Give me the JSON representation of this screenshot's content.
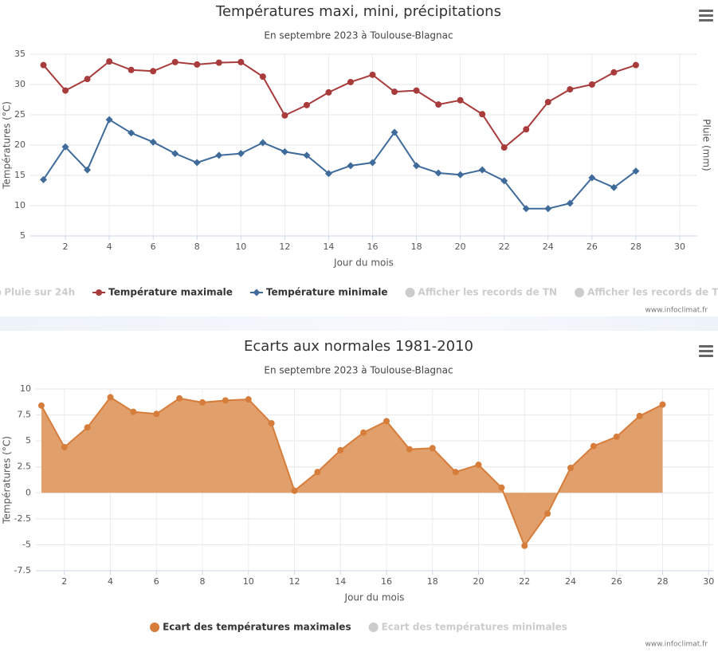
{
  "chart_data": [
    {
      "type": "line",
      "title": "Températures maxi, mini, précipitations",
      "subtitle": "En septembre 2023 à Toulouse-Blagnac",
      "xlabel": "Jour du mois",
      "ylabel": "Températures (°C)",
      "y2label": "Pluie (mm)",
      "x": [
        1,
        2,
        3,
        4,
        5,
        6,
        7,
        8,
        9,
        10,
        11,
        12,
        13,
        14,
        15,
        16,
        17,
        18,
        19,
        20,
        21,
        22,
        23,
        24,
        25,
        26,
        27,
        28
      ],
      "series": [
        {
          "name": "Température maximale",
          "color": "#a83b3b",
          "marker": "circle",
          "values": [
            33.2,
            29.0,
            30.9,
            33.8,
            32.4,
            32.2,
            33.7,
            33.3,
            33.6,
            33.7,
            31.3,
            24.9,
            26.6,
            28.7,
            30.4,
            31.6,
            28.8,
            29.0,
            26.7,
            27.4,
            25.1,
            19.6,
            22.6,
            27.1,
            29.2,
            30.0,
            32.0,
            33.2
          ]
        },
        {
          "name": "Température minimale",
          "color": "#3f6b9b",
          "marker": "diamond",
          "values": [
            14.3,
            19.7,
            15.9,
            24.2,
            22.0,
            20.5,
            18.6,
            17.1,
            18.3,
            18.6,
            20.4,
            18.9,
            18.3,
            15.3,
            16.6,
            17.1,
            22.1,
            16.6,
            15.4,
            15.1,
            15.9,
            14.1,
            9.5,
            9.5,
            10.4,
            14.6,
            13.0,
            15.7
          ]
        }
      ],
      "legend_hidden_before": [
        "Pluie sur 24h"
      ],
      "legend_hidden_after": [
        "Afficher les records de TN",
        "Afficher les records de TX"
      ],
      "xlim": [
        0.4,
        30.8
      ],
      "xticks": [
        2,
        4,
        6,
        8,
        10,
        12,
        14,
        16,
        18,
        20,
        22,
        24,
        26,
        28,
        30
      ],
      "ylim": [
        5,
        35
      ],
      "yticks": [
        5,
        10,
        15,
        20,
        25,
        30,
        35
      ],
      "grid": true,
      "credits": "www.infoclimat.fr"
    },
    {
      "type": "area",
      "title": "Ecarts aux normales 1981-2010",
      "subtitle": "En septembre 2023 à Toulouse-Blagnac",
      "xlabel": "Jour du mois",
      "ylabel": "Températures (°C)",
      "x": [
        1,
        2,
        3,
        4,
        5,
        6,
        7,
        8,
        9,
        10,
        11,
        12,
        13,
        14,
        15,
        16,
        17,
        18,
        19,
        20,
        21,
        22,
        23,
        24,
        25,
        26,
        27,
        28
      ],
      "series": [
        {
          "name": "Ecart des températures maximales",
          "color": "#d67d3b",
          "fill": "#e19f6b",
          "marker": "circle",
          "values": [
            8.4,
            4.4,
            6.3,
            9.2,
            7.8,
            7.6,
            9.1,
            8.7,
            8.9,
            9.0,
            6.7,
            0.2,
            2.0,
            4.1,
            5.8,
            6.9,
            4.2,
            4.3,
            2.0,
            2.7,
            0.5,
            -5.1,
            -2.0,
            2.4,
            4.5,
            5.4,
            7.4,
            8.5
          ]
        }
      ],
      "legend_hidden_before": [],
      "legend_hidden_after": [
        "Ecart des températures minimales"
      ],
      "xlim": [
        0.76,
        30.2
      ],
      "xticks": [
        2,
        4,
        6,
        8,
        10,
        12,
        14,
        16,
        18,
        20,
        22,
        24,
        26,
        28,
        30
      ],
      "ylim": [
        -7.5,
        10
      ],
      "yticks": [
        -7.5,
        -5,
        -2.5,
        0,
        2.5,
        5,
        7.5,
        10
      ],
      "grid": true,
      "credits": "www.infoclimat.fr"
    }
  ]
}
